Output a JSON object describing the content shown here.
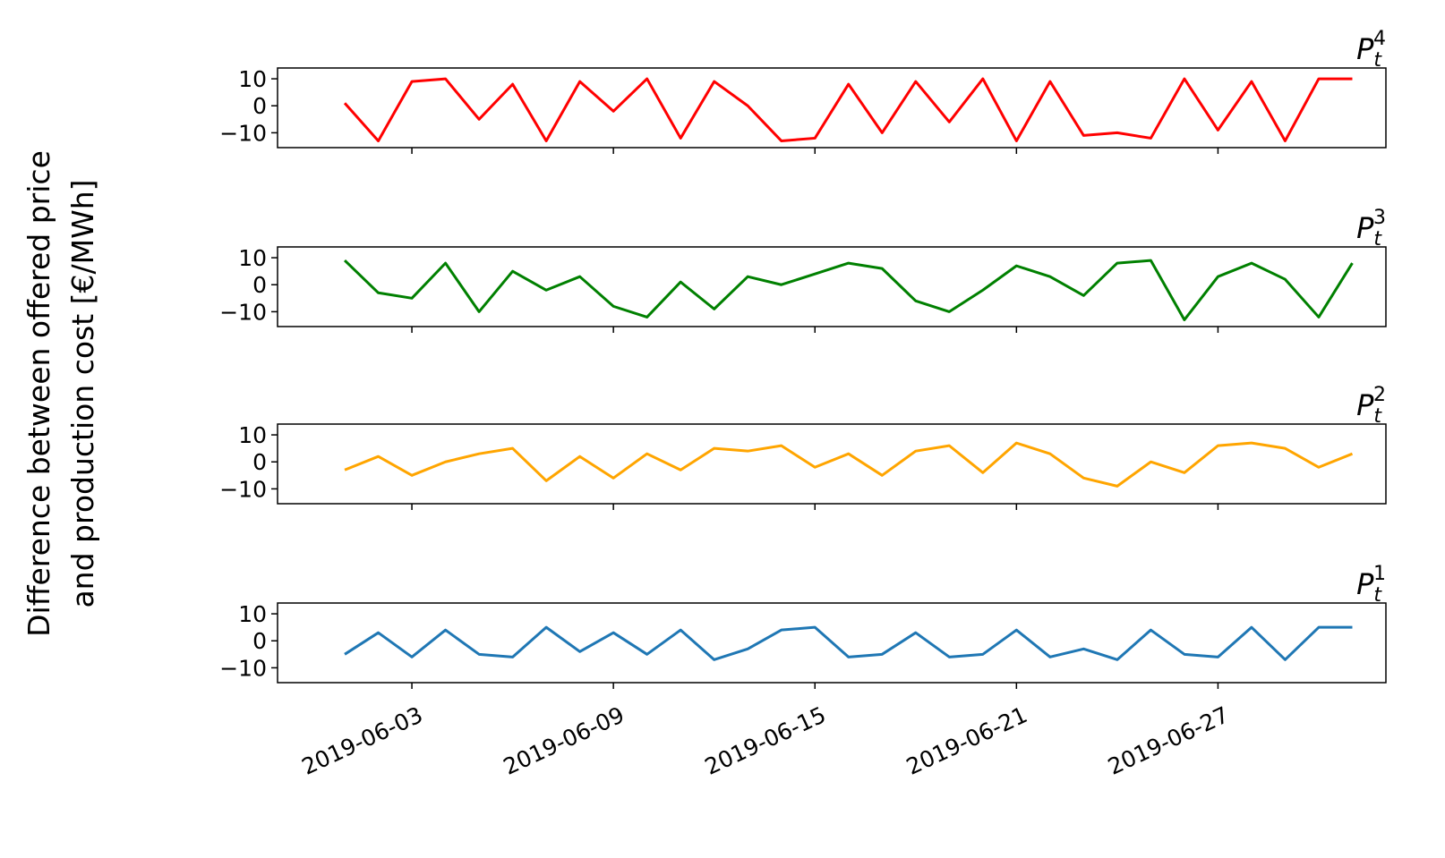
{
  "shared_ylabel": [
    "Difference between offered price",
    "and production cost [€/MWh]"
  ],
  "chart_data": [
    {
      "type": "line",
      "title": {
        "base": "P",
        "sub": "t",
        "sup": "4"
      },
      "color": "#ff0000",
      "x": [
        "2019-06-01",
        "2019-06-02",
        "2019-06-03",
        "2019-06-04",
        "2019-06-05",
        "2019-06-06",
        "2019-06-07",
        "2019-06-08",
        "2019-06-09",
        "2019-06-10",
        "2019-06-11",
        "2019-06-12",
        "2019-06-13",
        "2019-06-14",
        "2019-06-15",
        "2019-06-16",
        "2019-06-17",
        "2019-06-18",
        "2019-06-19",
        "2019-06-20",
        "2019-06-21",
        "2019-06-22",
        "2019-06-23",
        "2019-06-24",
        "2019-06-25",
        "2019-06-26",
        "2019-06-27",
        "2019-06-28",
        "2019-06-29",
        "2019-06-30",
        "2019-07-01"
      ],
      "values": [
        1,
        -13,
        9,
        10,
        -5,
        8,
        -13,
        9,
        -2,
        10,
        -12,
        9,
        0,
        -13,
        -12,
        8,
        -10,
        9,
        -6,
        10,
        -13,
        9,
        -11,
        -10,
        -12,
        10,
        -9,
        9,
        -13,
        10,
        10
      ],
      "xlim": [
        "2019-05-30",
        "2019-07-02"
      ],
      "xticks": [
        "2019-06-03",
        "2019-06-09",
        "2019-06-15",
        "2019-06-21",
        "2019-06-27"
      ],
      "ylim": [
        -15.5,
        14
      ],
      "yticks": [
        {
          "value": -10,
          "label": "−10"
        },
        0,
        10
      ]
    },
    {
      "type": "line",
      "title": {
        "base": "P",
        "sub": "t",
        "sup": "3"
      },
      "color": "#008000",
      "x": [
        "2019-06-01",
        "2019-06-02",
        "2019-06-03",
        "2019-06-04",
        "2019-06-05",
        "2019-06-06",
        "2019-06-07",
        "2019-06-08",
        "2019-06-09",
        "2019-06-10",
        "2019-06-11",
        "2019-06-12",
        "2019-06-13",
        "2019-06-14",
        "2019-06-15",
        "2019-06-16",
        "2019-06-17",
        "2019-06-18",
        "2019-06-19",
        "2019-06-20",
        "2019-06-21",
        "2019-06-22",
        "2019-06-23",
        "2019-06-24",
        "2019-06-25",
        "2019-06-26",
        "2019-06-27",
        "2019-06-28",
        "2019-06-29",
        "2019-06-30",
        "2019-07-01"
      ],
      "values": [
        9,
        -3,
        -5,
        8,
        -10,
        5,
        -2,
        3,
        -8,
        -12,
        1,
        -9,
        3,
        0,
        4,
        8,
        6,
        -6,
        -10,
        -2,
        7,
        3,
        -4,
        8,
        9,
        -13,
        3,
        8,
        2,
        -12,
        8
      ],
      "xlim": [
        "2019-05-30",
        "2019-07-02"
      ],
      "xticks": [
        "2019-06-03",
        "2019-06-09",
        "2019-06-15",
        "2019-06-21",
        "2019-06-27"
      ],
      "ylim": [
        -15.5,
        14
      ],
      "yticks": [
        {
          "value": -10,
          "label": "−10"
        },
        0,
        10
      ]
    },
    {
      "type": "line",
      "title": {
        "base": "P",
        "sub": "t",
        "sup": "2"
      },
      "color": "#ffa500",
      "x": [
        "2019-06-01",
        "2019-06-02",
        "2019-06-03",
        "2019-06-04",
        "2019-06-05",
        "2019-06-06",
        "2019-06-07",
        "2019-06-08",
        "2019-06-09",
        "2019-06-10",
        "2019-06-11",
        "2019-06-12",
        "2019-06-13",
        "2019-06-14",
        "2019-06-15",
        "2019-06-16",
        "2019-06-17",
        "2019-06-18",
        "2019-06-19",
        "2019-06-20",
        "2019-06-21",
        "2019-06-22",
        "2019-06-23",
        "2019-06-24",
        "2019-06-25",
        "2019-06-26",
        "2019-06-27",
        "2019-06-28",
        "2019-06-29",
        "2019-06-30",
        "2019-07-01"
      ],
      "values": [
        -3,
        2,
        -5,
        0,
        3,
        5,
        -7,
        2,
        -6,
        3,
        -3,
        5,
        4,
        6,
        -2,
        3,
        -5,
        4,
        6,
        -4,
        7,
        3,
        -6,
        -9,
        0,
        -4,
        6,
        7,
        5,
        -2,
        3
      ],
      "xlim": [
        "2019-05-30",
        "2019-07-02"
      ],
      "xticks": [
        "2019-06-03",
        "2019-06-09",
        "2019-06-15",
        "2019-06-21",
        "2019-06-27"
      ],
      "ylim": [
        -15.5,
        14
      ],
      "yticks": [
        {
          "value": -10,
          "label": "−10"
        },
        0,
        10
      ]
    },
    {
      "type": "line",
      "title": {
        "base": "P",
        "sub": "t",
        "sup": "1"
      },
      "color": "#1f77b4",
      "x": [
        "2019-06-01",
        "2019-06-02",
        "2019-06-03",
        "2019-06-04",
        "2019-06-05",
        "2019-06-06",
        "2019-06-07",
        "2019-06-08",
        "2019-06-09",
        "2019-06-10",
        "2019-06-11",
        "2019-06-12",
        "2019-06-13",
        "2019-06-14",
        "2019-06-15",
        "2019-06-16",
        "2019-06-17",
        "2019-06-18",
        "2019-06-19",
        "2019-06-20",
        "2019-06-21",
        "2019-06-22",
        "2019-06-23",
        "2019-06-24",
        "2019-06-25",
        "2019-06-26",
        "2019-06-27",
        "2019-06-28",
        "2019-06-29",
        "2019-06-30",
        "2019-07-01"
      ],
      "values": [
        -5,
        3,
        -6,
        4,
        -5,
        -6,
        5,
        -4,
        3,
        -5,
        4,
        -7,
        -3,
        4,
        5,
        -6,
        -5,
        3,
        -6,
        -5,
        4,
        -6,
        -3,
        -7,
        4,
        -5,
        -6,
        5,
        -7,
        5,
        5
      ],
      "xlim": [
        "2019-05-30",
        "2019-07-02"
      ],
      "xticks": [
        "2019-06-03",
        "2019-06-09",
        "2019-06-15",
        "2019-06-21",
        "2019-06-27"
      ],
      "ylim": [
        -15.5,
        14
      ],
      "yticks": [
        {
          "value": -10,
          "label": "−10"
        },
        0,
        10
      ]
    }
  ]
}
